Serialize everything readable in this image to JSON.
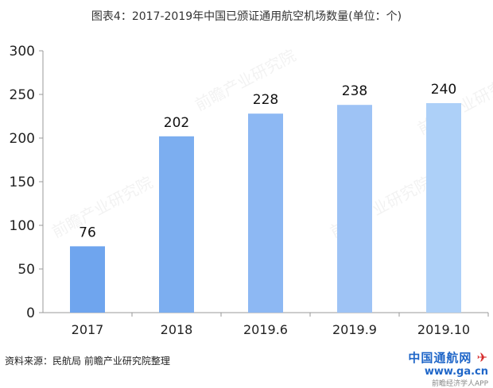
{
  "title": "图表4：2017-2019年中国已颁证通用航空机场数量(单位：个)",
  "source": "资料来源：民航局 前瞻产业研究院整理",
  "watermark": {
    "text": "前瞻产业研究院",
    "site_name": "中国通航网",
    "site_url": "www.ga.cn",
    "app_label": "前瞻经济学人APP"
  },
  "colors": {
    "bar_series": [
      "#6fa5ee",
      "#7caef0",
      "#8db8f3",
      "#9ec3f5",
      "#add0f8"
    ],
    "axis": "#999999"
  },
  "chart_data": {
    "type": "bar",
    "title": "图表4：2017-2019年中国已颁证通用航空机场数量(单位：个)",
    "categories": [
      "2017",
      "2018",
      "2019.6",
      "2019.9",
      "2019.10"
    ],
    "values": [
      76,
      202,
      228,
      238,
      240
    ],
    "data_labels": [
      "76",
      "202",
      "228",
      "238",
      "240"
    ],
    "xlabel": "",
    "ylabel": "",
    "ylim": [
      0,
      300
    ],
    "yticks": [
      0,
      50,
      100,
      150,
      200,
      250,
      300
    ],
    "grid": false,
    "legend": "none"
  }
}
